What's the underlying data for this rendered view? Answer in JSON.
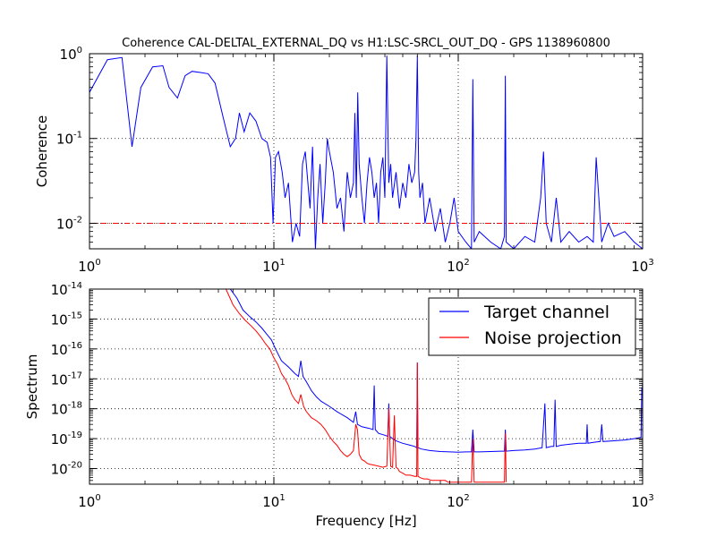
{
  "chart_data": [
    {
      "type": "line",
      "title": "Coherence CAL-DELTAL_EXTERNAL_DQ vs H1:LSC-SRCL_OUT_DQ - GPS 1138960800",
      "xlabel": "",
      "ylabel": "Coherence",
      "xscale": "log",
      "yscale": "log",
      "xlim": [
        1,
        1000
      ],
      "ylim": [
        0.005,
        1
      ],
      "x_ticks": [
        {
          "base": "10",
          "exp": "0"
        },
        {
          "base": "10",
          "exp": "1"
        },
        {
          "base": "10",
          "exp": "2"
        },
        {
          "base": "10",
          "exp": "3"
        }
      ],
      "y_ticks": [
        {
          "v": 1,
          "base": "10",
          "exp": "0"
        },
        {
          "v": 0.1,
          "base": "10",
          "exp": "-1"
        },
        {
          "v": 0.01,
          "base": "10",
          "exp": "-2"
        }
      ],
      "grid": true,
      "series": [
        {
          "color": "#0000ff",
          "style": "solid",
          "x": [
            1.0,
            1.25,
            1.5,
            1.7,
            1.9,
            2.2,
            2.5,
            2.7,
            3.0,
            3.3,
            3.6,
            4.0,
            4.4,
            4.8,
            5.3,
            5.8,
            6.2,
            6.5,
            6.9,
            7.4,
            8.0,
            8.6,
            9.2,
            9.6,
            9.9,
            10.2,
            10.6,
            11.1,
            11.5,
            12.0,
            12.6,
            13.2,
            13.8,
            14.3,
            14.8,
            15.3,
            15.7,
            16.2,
            16.8,
            17.3,
            17.8,
            18.4,
            19.0,
            19.5,
            20.0,
            21.0,
            22.0,
            23.0,
            24.0,
            25.0,
            26.0,
            27.0,
            27.5,
            28.0,
            28.5,
            29.0,
            30.0,
            31.0,
            32.0,
            33.0,
            34.0,
            35.0,
            36.0,
            37.0,
            38.0,
            39.0,
            40.0,
            41.0,
            42.0,
            43.0,
            44.0,
            46.0,
            48.0,
            50.0,
            52.0,
            54.0,
            56.0,
            58.0,
            59.0,
            60.0,
            61.0,
            62.0,
            64.0,
            66.0,
            70.0,
            75.0,
            80.0,
            85.0,
            90.0,
            95.0,
            100.0,
            110.0,
            118.0,
            120.0,
            122.0,
            130.0,
            150.0,
            170.0,
            178.0,
            180.0,
            182.0,
            200.0,
            230.0,
            260.0,
            280.0,
            290.0,
            300.0,
            320.0,
            340.0,
            360.0,
            400.0,
            450.0,
            500.0,
            540.0,
            560.0,
            600.0,
            650.0,
            700.0,
            800.0,
            900.0,
            1000.0
          ],
          "y": [
            0.35,
            0.85,
            0.9,
            0.08,
            0.4,
            0.7,
            0.72,
            0.4,
            0.3,
            0.55,
            0.62,
            0.6,
            0.58,
            0.45,
            0.18,
            0.08,
            0.1,
            0.2,
            0.12,
            0.2,
            0.16,
            0.1,
            0.09,
            0.06,
            0.01,
            0.06,
            0.07,
            0.04,
            0.02,
            0.03,
            0.006,
            0.01,
            0.007,
            0.05,
            0.07,
            0.03,
            0.015,
            0.08,
            0.005,
            0.02,
            0.05,
            0.01,
            0.03,
            0.1,
            0.07,
            0.04,
            0.015,
            0.02,
            0.008,
            0.04,
            0.02,
            0.03,
            0.2,
            0.02,
            0.35,
            0.05,
            0.02,
            0.01,
            0.03,
            0.06,
            0.04,
            0.02,
            0.03,
            0.01,
            0.04,
            0.06,
            0.02,
            0.95,
            0.03,
            0.05,
            0.02,
            0.04,
            0.015,
            0.03,
            0.02,
            0.05,
            0.03,
            0.04,
            0.1,
            0.95,
            0.04,
            0.02,
            0.03,
            0.01,
            0.02,
            0.008,
            0.015,
            0.006,
            0.01,
            0.02,
            0.008,
            0.006,
            0.005,
            0.5,
            0.006,
            0.008,
            0.006,
            0.005,
            0.007,
            0.55,
            0.006,
            0.005,
            0.007,
            0.006,
            0.02,
            0.07,
            0.01,
            0.006,
            0.02,
            0.006,
            0.008,
            0.006,
            0.007,
            0.006,
            0.06,
            0.006,
            0.01,
            0.007,
            0.008,
            0.006,
            0.005
          ]
        },
        {
          "color": "#ff0000",
          "style": "dashdot",
          "x": [
            1,
            1000
          ],
          "y": [
            0.01,
            0.01
          ]
        }
      ]
    },
    {
      "type": "line",
      "title": "",
      "xlabel": "Frequency [Hz]",
      "ylabel": "Spectrum",
      "xscale": "log",
      "yscale": "log",
      "xlim": [
        1,
        1000
      ],
      "ylim": [
        3e-21,
        1e-14
      ],
      "x_ticks": [
        {
          "base": "10",
          "exp": "0"
        },
        {
          "base": "10",
          "exp": "1"
        },
        {
          "base": "10",
          "exp": "2"
        },
        {
          "base": "10",
          "exp": "3"
        }
      ],
      "y_ticks": [
        {
          "v": 1e-14,
          "base": "10",
          "exp": "-14"
        },
        {
          "v": 1e-15,
          "base": "10",
          "exp": "-15"
        },
        {
          "v": 1e-16,
          "base": "10",
          "exp": "-16"
        },
        {
          "v": 1e-17,
          "base": "10",
          "exp": "-17"
        },
        {
          "v": 1e-18,
          "base": "10",
          "exp": "-18"
        },
        {
          "v": 1e-19,
          "base": "10",
          "exp": "-19"
        },
        {
          "v": 1e-20,
          "base": "10",
          "exp": "-20"
        }
      ],
      "grid": true,
      "legend_position": "top-right",
      "series": [
        {
          "name": "Target channel",
          "color": "#0000ff",
          "x": [
            5.8,
            6.3,
            6.8,
            7.4,
            8.0,
            8.6,
            9.2,
            9.7,
            10.2,
            11.0,
            12.0,
            13.0,
            13.6,
            14.0,
            14.4,
            15.0,
            16.0,
            17.0,
            18.0,
            20.0,
            22.0,
            25.0,
            27.0,
            27.8,
            28.4,
            30.0,
            33.0,
            34.5,
            35.0,
            35.5,
            37.0,
            40.0,
            41.5,
            42.0,
            42.5,
            45.0,
            47.0,
            50.0,
            55.0,
            58.0,
            59.5,
            60.0,
            60.5,
            63.0,
            70.0,
            80.0,
            90.0,
            100.0,
            110.0,
            118.0,
            120.0,
            122.0,
            130.0,
            150.0,
            170.0,
            178.0,
            180.0,
            182.0,
            200.0,
            230.0,
            260.0,
            285.0,
            295.0,
            300.0,
            320.0,
            330.0,
            335.0,
            340.0,
            360.0,
            400.0,
            450.0,
            495.0,
            500.0,
            505.0,
            540.0,
            590.0,
            600.0,
            610.0,
            700.0,
            800.0,
            900.0,
            980.0,
            990.0,
            995.0,
            998.0,
            1000.0
          ],
          "y": [
            1e-14,
            5e-15,
            2e-15,
            1.2e-15,
            8e-16,
            5e-16,
            3e-16,
            2e-16,
            1e-16,
            4e-17,
            2.5e-17,
            1.5e-17,
            1.2e-17,
            4e-17,
            1.2e-17,
            8e-18,
            4e-18,
            2.5e-18,
            1.8e-18,
            1.2e-18,
            8e-19,
            5e-19,
            3.5e-19,
            8e-19,
            3e-19,
            2.5e-19,
            2.2e-19,
            2e-19,
            6e-18,
            2e-19,
            1.5e-19,
            1.3e-19,
            1.2e-19,
            1.5e-18,
            1.2e-19,
            9e-20,
            8e-20,
            7e-20,
            6e-20,
            5.5e-20,
            5e-20,
            3.5e-17,
            5e-20,
            4.5e-20,
            4e-20,
            3.7e-20,
            3.6e-20,
            3.5e-20,
            3.6e-20,
            3.6e-20,
            2e-19,
            3.6e-20,
            3.6e-20,
            3.7e-20,
            3.8e-20,
            3.8e-20,
            2e-19,
            3.8e-20,
            4e-20,
            4.2e-20,
            4.5e-20,
            5e-20,
            1.5e-18,
            5e-20,
            5.5e-20,
            5.5e-20,
            2e-18,
            5.5e-20,
            6e-20,
            6.5e-20,
            7e-20,
            7e-20,
            3e-19,
            7e-20,
            7.5e-20,
            8e-20,
            3e-19,
            8e-20,
            8.5e-20,
            9e-20,
            1e-19,
            1.1e-19,
            5e-18,
            3e-18,
            7e-18,
            3e-18
          ]
        },
        {
          "name": "Noise projection",
          "color": "#ff0000",
          "x": [
            5.5,
            6.0,
            6.5,
            7.0,
            7.5,
            8.0,
            8.5,
            9.0,
            9.5,
            10.0,
            10.5,
            11.0,
            11.5,
            12.0,
            12.5,
            13.0,
            13.6,
            14.0,
            14.5,
            15.0,
            16.0,
            17.0,
            18.0,
            19.0,
            20.0,
            21.0,
            22.0,
            23.0,
            24.0,
            25.0,
            26.0,
            27.0,
            27.8,
            28.4,
            29.0,
            30.0,
            31.0,
            32.0,
            33.0,
            35.0,
            37.0,
            39.0,
            41.0,
            42.0,
            43.0,
            44.0,
            45.0,
            46.0,
            47.0,
            48.0,
            50.0,
            52.0,
            55.0,
            58.0,
            59.5,
            60.0,
            60.5,
            62.0,
            65.0,
            68.0,
            72.0,
            76.0,
            80.0,
            85.0,
            88.0,
            118.0,
            120.0,
            122.0,
            178.0,
            180.0,
            182.0
          ],
          "y": [
            1e-14,
            3e-15,
            1.5e-15,
            9e-16,
            6e-16,
            4e-16,
            2.5e-16,
            1.5e-16,
            1e-16,
            5e-17,
            3e-17,
            1.5e-17,
            1e-17,
            6e-18,
            3e-18,
            2e-18,
            1.5e-18,
            3e-18,
            1.2e-18,
            8e-19,
            5e-19,
            4e-19,
            3e-19,
            2e-19,
            1.2e-19,
            8e-20,
            6e-20,
            4e-20,
            3e-20,
            2.5e-20,
            3e-20,
            4e-20,
            3e-19,
            2e-19,
            3e-20,
            2e-20,
            1.8e-20,
            1.5e-20,
            1.4e-20,
            1.3e-20,
            1.2e-20,
            1.1e-20,
            1.2e-20,
            1e-18,
            1.2e-20,
            1.1e-20,
            6e-19,
            1.1e-20,
            1e-20,
            8e-21,
            7e-21,
            6e-21,
            6e-21,
            5.5e-21,
            5.5e-21,
            3.5e-17,
            5.5e-21,
            5e-21,
            4.5e-21,
            4.5e-21,
            4e-21,
            4e-21,
            4e-21,
            4e-21,
            3.5e-21,
            3.5e-21,
            1e-19,
            3.5e-21,
            3.5e-21,
            1.5e-19,
            3.5e-21
          ]
        }
      ]
    }
  ]
}
